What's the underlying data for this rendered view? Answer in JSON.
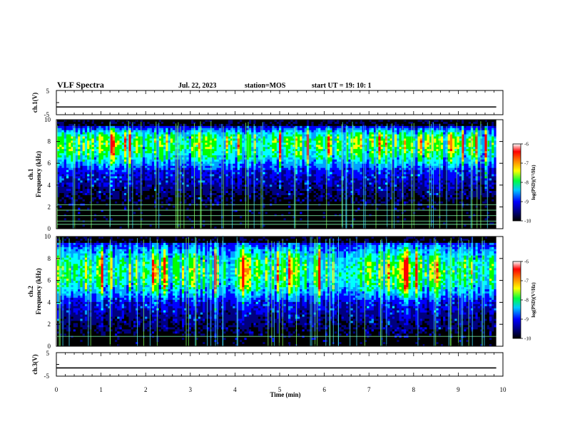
{
  "header": {
    "title": "VLF Spectra",
    "date": "Jul. 22, 2023",
    "station": "station=MOS",
    "start": "start UT =  19: 10: 1"
  },
  "chart_data": [
    {
      "type": "line",
      "panel": "ch1-waveform",
      "ylabel": "ch.1(V)",
      "yticks": [
        "5",
        "-5"
      ],
      "ylim": [
        -5,
        5
      ],
      "x": [
        0,
        9.85
      ],
      "values": [
        -1.8,
        -1.8
      ]
    },
    {
      "type": "heatmap",
      "panel": "ch1-spectrogram",
      "ylabel": "ch.1\nFrequency (kHz)",
      "ylim": [
        0,
        10
      ],
      "yticks": [
        "0",
        "2",
        "4",
        "6",
        "8",
        "10"
      ],
      "xlim": [
        0,
        9.85
      ],
      "band_kHz": [
        5.3,
        9.3
      ],
      "band_peak_kHz": 8.0,
      "lines_kHz": [
        0.4,
        0.7,
        1.2,
        1.7,
        2.2
      ],
      "colorbar": {
        "label": "log(PSD)(V²/Hz)",
        "ticks": [
          "-6",
          "-7",
          "-8",
          "-9",
          "-10"
        ],
        "range": [
          -10,
          -6
        ]
      }
    },
    {
      "type": "heatmap",
      "panel": "ch2-spectrogram",
      "ylabel": "ch.2\nFrequency (kHz)",
      "ylim": [
        0,
        10
      ],
      "yticks": [
        "0",
        "2",
        "4",
        "6",
        "8",
        "10"
      ],
      "xlim": [
        0,
        9.85
      ],
      "band_kHz": [
        4.0,
        9.5
      ],
      "band_peak_kHz": 6.8,
      "lines_kHz": [
        0.9
      ],
      "colorbar": {
        "label": "log(PSD)(V²/Hz)",
        "ticks": [
          "-6",
          "-7",
          "-8",
          "-9",
          "-10"
        ],
        "range": [
          -10,
          -6
        ]
      }
    },
    {
      "type": "line",
      "panel": "ch3-waveform",
      "ylabel": "ch.3(V)",
      "yticks": [
        "5",
        "-5"
      ],
      "ylim": [
        -5,
        5
      ],
      "x": [
        0,
        9.85
      ],
      "values": [
        -1.5,
        -1.5
      ]
    }
  ],
  "xaxis": {
    "label": "Time (min)",
    "ticks": [
      "0",
      "1",
      "2",
      "3",
      "4",
      "5",
      "6",
      "7",
      "8",
      "9",
      "10"
    ],
    "range": [
      0,
      10
    ]
  },
  "colors": {
    "colormap": [
      "#000000",
      "#000080",
      "#0000ff",
      "#00a0ff",
      "#00ffff",
      "#00ff00",
      "#ffff00",
      "#ff8000",
      "#ff0000",
      "#ffffff"
    ]
  }
}
